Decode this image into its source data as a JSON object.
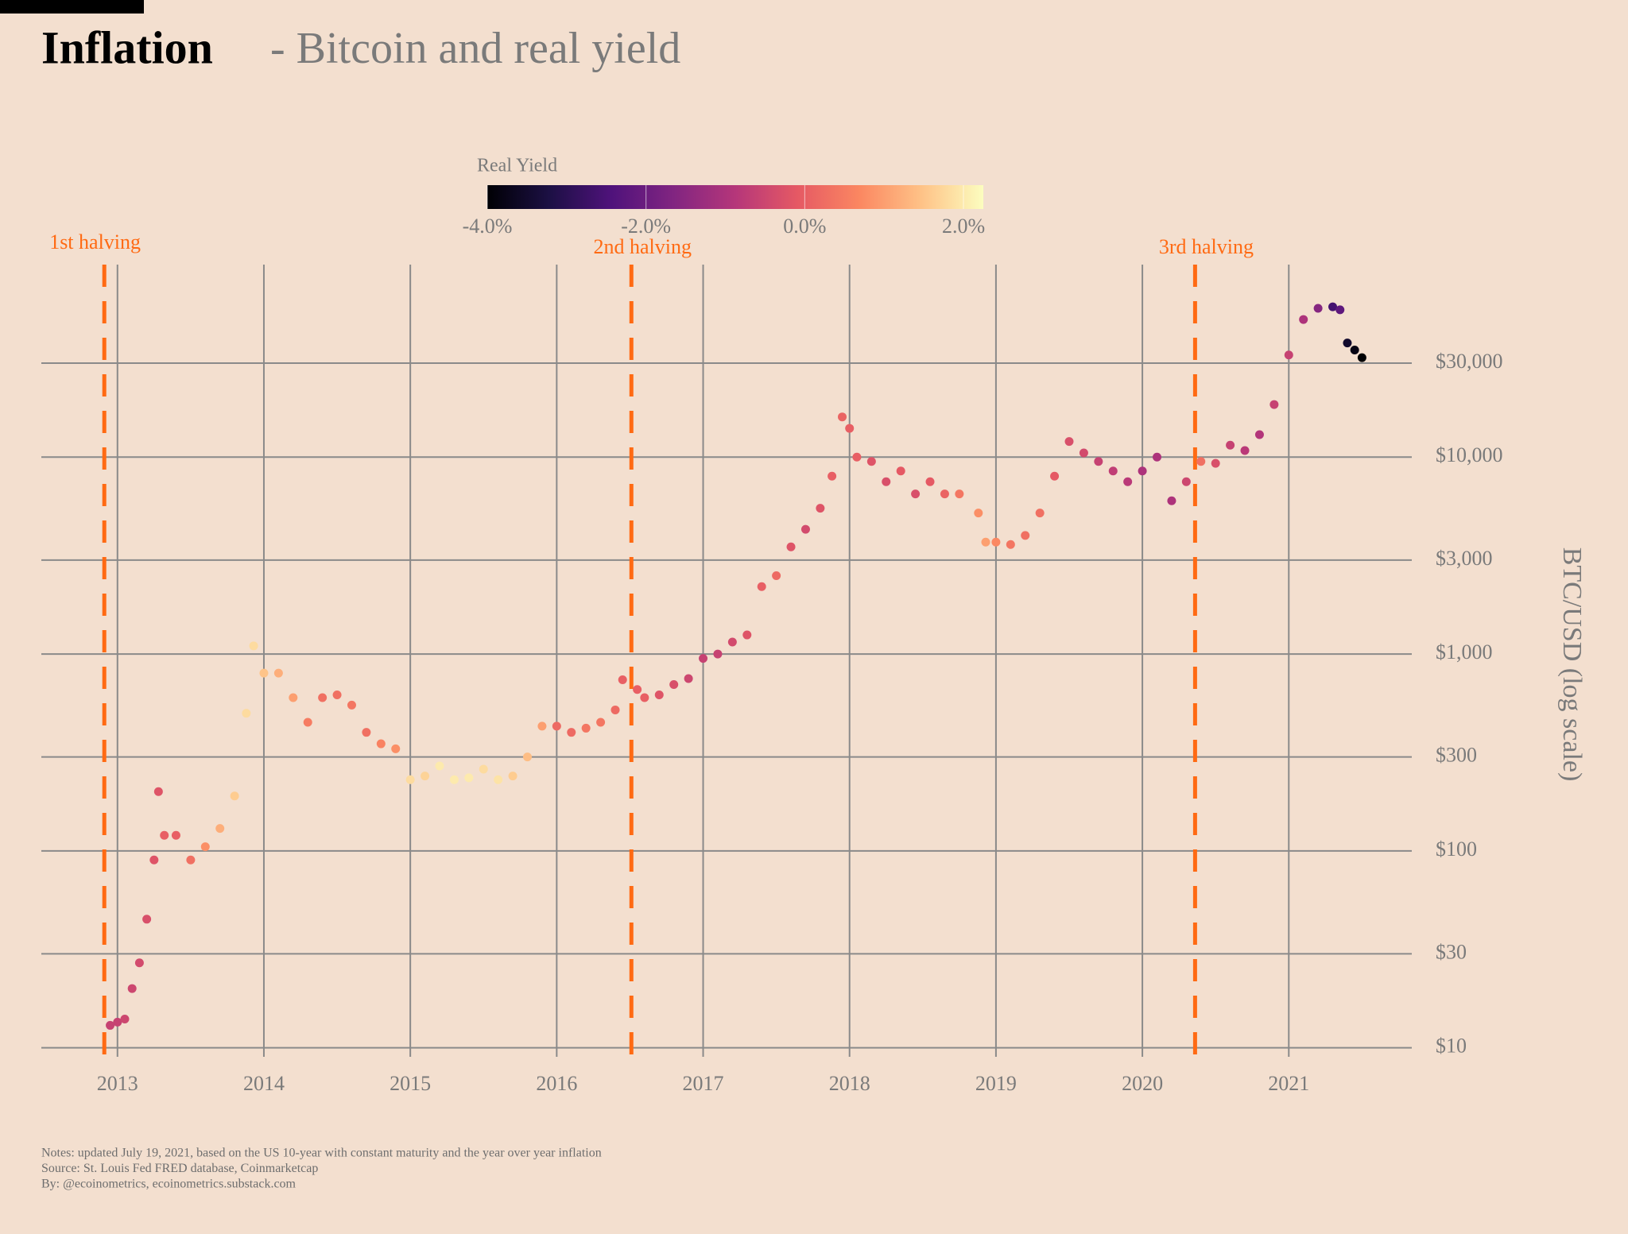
{
  "chart_data": {
    "type": "scatter",
    "title": "Inflation",
    "subtitle": "- Bitcoin and real yield",
    "y_label": "BTC/USD (log scale)",
    "log_y": true,
    "grid": true,
    "xlim": [
      2012.48,
      2021.84
    ],
    "xticks": [
      2013,
      2014,
      2015,
      2016,
      2017,
      2018,
      2019,
      2020,
      2021
    ],
    "ylim": [
      9,
      95000
    ],
    "yticks": [
      {
        "value": 10,
        "label": "$10"
      },
      {
        "value": 30,
        "label": "$30"
      },
      {
        "value": 100,
        "label": "$100"
      },
      {
        "value": 300,
        "label": "$300"
      },
      {
        "value": 1000,
        "label": "$1,000"
      },
      {
        "value": 3000,
        "label": "$3,000"
      },
      {
        "value": 10000,
        "label": "$10,000"
      },
      {
        "value": 30000,
        "label": "$30,000"
      }
    ],
    "colorbar": {
      "title": "Real Yield",
      "colormap": "magma",
      "lim": [
        -4,
        2.25
      ],
      "ticks": [
        {
          "value": -4,
          "label": "-4.0%"
        },
        {
          "value": -2,
          "label": "-2.0%"
        },
        {
          "value": 0,
          "label": "0.0%"
        },
        {
          "value": 2,
          "label": "2.0%"
        }
      ]
    },
    "halvings": [
      {
        "label": "1st halving",
        "x": 2012.91,
        "color": "#ff6a13"
      },
      {
        "label": "2nd halving",
        "x": 2016.51,
        "color": "#ff6a13"
      },
      {
        "label": "3rd halving",
        "x": 2020.36,
        "color": "#ff6a13"
      }
    ],
    "x": [
      2012.95,
      2013.0,
      2013.05,
      2013.1,
      2013.15,
      2013.2,
      2013.25,
      2013.28,
      2013.32,
      2013.4,
      2013.5,
      2013.6,
      2013.7,
      2013.8,
      2013.88,
      2013.93,
      2014.0,
      2014.1,
      2014.2,
      2014.3,
      2014.4,
      2014.5,
      2014.6,
      2014.7,
      2014.8,
      2014.9,
      2015.0,
      2015.1,
      2015.2,
      2015.3,
      2015.4,
      2015.5,
      2015.6,
      2015.7,
      2015.8,
      2015.9,
      2016.0,
      2016.1,
      2016.2,
      2016.3,
      2016.4,
      2016.45,
      2016.55,
      2016.6,
      2016.7,
      2016.8,
      2016.9,
      2017.0,
      2017.1,
      2017.2,
      2017.3,
      2017.4,
      2017.5,
      2017.6,
      2017.7,
      2017.8,
      2017.88,
      2017.95,
      2018.0,
      2018.05,
      2018.15,
      2018.25,
      2018.35,
      2018.45,
      2018.55,
      2018.65,
      2018.75,
      2018.88,
      2018.93,
      2019.0,
      2019.1,
      2019.2,
      2019.3,
      2019.4,
      2019.5,
      2019.6,
      2019.7,
      2019.8,
      2019.9,
      2020.0,
      2020.1,
      2020.2,
      2020.3,
      2020.4,
      2020.5,
      2020.6,
      2020.7,
      2020.8,
      2020.9,
      2021.0,
      2021.1,
      2021.2,
      2021.3,
      2021.35,
      2021.4,
      2021.45,
      2021.5
    ],
    "values": [
      13,
      13.5,
      14,
      20,
      27,
      45,
      90,
      200,
      120,
      120,
      90,
      105,
      130,
      190,
      500,
      1100,
      800,
      800,
      600,
      450,
      600,
      620,
      550,
      400,
      350,
      330,
      230,
      240,
      270,
      230,
      235,
      260,
      230,
      240,
      300,
      430,
      430,
      400,
      420,
      450,
      520,
      740,
      660,
      600,
      620,
      700,
      750,
      950,
      1000,
      1150,
      1250,
      2200,
      2500,
      3500,
      4300,
      5500,
      8000,
      16000,
      14000,
      10000,
      9500,
      7500,
      8500,
      6500,
      7500,
      6500,
      6500,
      5200,
      3700,
      3700,
      3600,
      4000,
      5200,
      8000,
      12000,
      10500,
      9500,
      8500,
      7500,
      8500,
      10000,
      6000,
      7500,
      9500,
      9300,
      11500,
      10800,
      13000,
      18500,
      33000,
      50000,
      57000,
      58000,
      56000,
      38000,
      35000,
      32000
    ],
    "color_values": [
      -0.6,
      -0.6,
      -0.5,
      -0.5,
      -0.4,
      -0.3,
      -0.2,
      -0.2,
      0,
      0,
      0.3,
      0.8,
      1.2,
      1.6,
      1.8,
      1.8,
      1.5,
      1.2,
      1.0,
      0.5,
      0.3,
      0.3,
      0.4,
      0.3,
      0.6,
      0.8,
      1.8,
      1.7,
      2.0,
      2.0,
      2.0,
      1.8,
      1.9,
      1.6,
      1.4,
      1.0,
      0.2,
      0.2,
      0.4,
      0.4,
      0.2,
      0,
      0,
      0,
      -0.2,
      -0.3,
      -0.5,
      -0.6,
      -0.6,
      -0.4,
      -0.2,
      0,
      0.2,
      -0.2,
      -0.4,
      -0.2,
      0,
      0.1,
      0,
      0,
      -0.2,
      -0.3,
      -0.1,
      -0.3,
      -0.1,
      0.1,
      0.4,
      0.8,
      1.0,
      0.7,
      0.4,
      0.3,
      0.3,
      -0.1,
      -0.3,
      -0.4,
      -0.6,
      -0.7,
      -0.8,
      -1.0,
      -1.0,
      -1.0,
      -0.5,
      0.3,
      -0.3,
      -0.6,
      -0.8,
      -0.9,
      -0.6,
      -0.6,
      -1.0,
      -1.6,
      -2.6,
      -2.2,
      -3.5,
      -3.8,
      -4.0
    ],
    "notes": [
      "Notes: updated July 19, 2021, based on the US 10-year with constant maturity and the year over year inflation",
      "Source: St. Louis Fed FRED database, Coinmarketcap",
      "By: @ecoinometrics, ecoinometrics.substack.com"
    ]
  }
}
